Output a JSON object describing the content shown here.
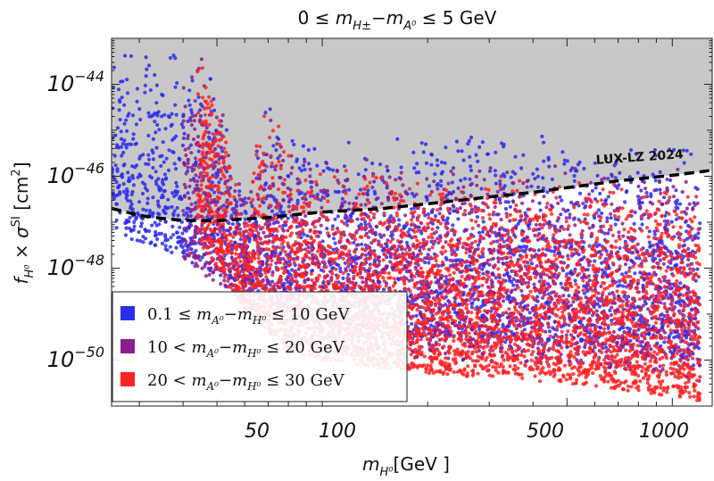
{
  "chart_data": {
    "type": "scatter",
    "title": "0 ≤ m_{H±} − m_{A⁰} ≤ 5 GeV",
    "title_parts": {
      "a": "0 ≤ ",
      "m1": "m",
      "s1": "H±",
      "dash": "−",
      "m2": "m",
      "s2": "A⁰",
      "b": " ≤ 5 GeV"
    },
    "xlabel": "m_{H⁰} [GeV ]",
    "xlabel_parts": {
      "m": "m",
      "s": "H⁰",
      "u": "[GeV ]"
    },
    "ylabel": "f_{H⁰} × σ^{SI} [cm²]",
    "ylabel_parts": {
      "f": "f",
      "s": "H⁰",
      "times": " × ",
      "sig": "σ",
      "sup": "SI",
      "u": " [cm",
      "sq": "2",
      "end": "]"
    },
    "x_scale": "log",
    "y_scale": "log",
    "xlim": [
      25,
      1300
    ],
    "ylim": [
      1e-51,
      1e-43
    ],
    "x_ticks": [
      {
        "value": 50,
        "label": "50"
      },
      {
        "value": 100,
        "label": "100"
      },
      {
        "value": 500,
        "label": "500"
      },
      {
        "value": 1000,
        "label": "1000"
      }
    ],
    "y_ticks": [
      {
        "value": -44,
        "base": "10",
        "exp": "−44"
      },
      {
        "value": -46,
        "base": "10",
        "exp": "−46"
      },
      {
        "value": -48,
        "base": "10",
        "exp": "−48"
      },
      {
        "value": -50,
        "base": "10",
        "exp": "−50"
      }
    ],
    "exclusion": {
      "label": "LUX-LZ 2024",
      "fill": "#c8c8c8",
      "curve": [
        [
          25,
          -46.7
        ],
        [
          30,
          -46.85
        ],
        [
          35,
          -46.92
        ],
        [
          40,
          -46.96
        ],
        [
          50,
          -46.97
        ],
        [
          60,
          -46.93
        ],
        [
          70,
          -46.9
        ],
        [
          80,
          -46.85
        ],
        [
          100,
          -46.78
        ],
        [
          150,
          -46.7
        ],
        [
          200,
          -46.6
        ],
        [
          300,
          -46.45
        ],
        [
          400,
          -46.35
        ],
        [
          500,
          -46.25
        ],
        [
          700,
          -46.1
        ],
        [
          1000,
          -45.98
        ],
        [
          1300,
          -45.87
        ]
      ]
    },
    "series": [
      {
        "name": "0.1 ≤ m_{A⁰} − m_{H⁰} ≤ 10 GeV",
        "lab": {
          "a": "0.1 ≤ ",
          "m1": "m",
          "s1": "A⁰",
          "dash": "−",
          "m2": "m",
          "s2": "H⁰",
          "b": " ≤ 10 GeV"
        },
        "color": "#2a2cf0",
        "upper": [
          [
            25,
            -43.2
          ],
          [
            40,
            -43.25
          ],
          [
            45,
            -43.2
          ],
          [
            48,
            -43.6
          ],
          [
            52,
            -44.3
          ],
          [
            56,
            -45.3
          ],
          [
            60,
            -46.4
          ],
          [
            62,
            -46.6
          ],
          [
            65,
            -44.9
          ],
          [
            68,
            -44.4
          ],
          [
            72,
            -44.25
          ],
          [
            78,
            -44.75
          ],
          [
            85,
            -45.15
          ],
          [
            100,
            -45.1
          ],
          [
            200,
            -45.05
          ],
          [
            500,
            -45.05
          ],
          [
            1000,
            -45.15
          ],
          [
            1200,
            -45.25
          ]
        ],
        "lower": [
          [
            25,
            -47.2
          ],
          [
            40,
            -47.8
          ],
          [
            60,
            -48.4
          ],
          [
            80,
            -49.1
          ],
          [
            100,
            -49.3
          ],
          [
            200,
            -49.5
          ],
          [
            500,
            -49.7
          ],
          [
            1000,
            -49.9
          ],
          [
            1200,
            -50.3
          ]
        ]
      },
      {
        "name": "10 < m_{A⁰} − m_{H⁰} ≤ 20 GeV",
        "lab": {
          "a": "10 < ",
          "m1": "m",
          "s1": "A⁰",
          "dash": "−",
          "m2": "m",
          "s2": "H⁰",
          "b": " ≤ 20 GeV"
        },
        "color": "#8a1f8e",
        "upper": [
          [
            40,
            -43.5
          ],
          [
            45,
            -43.2
          ],
          [
            48,
            -43.6
          ],
          [
            52,
            -44.6
          ],
          [
            56,
            -45.6
          ],
          [
            60,
            -46.5
          ],
          [
            65,
            -45.2
          ],
          [
            70,
            -44.3
          ],
          [
            78,
            -44.9
          ],
          [
            85,
            -45.4
          ],
          [
            100,
            -45.5
          ],
          [
            200,
            -45.6
          ],
          [
            500,
            -45.6
          ],
          [
            1000,
            -45.65
          ],
          [
            1200,
            -45.7
          ]
        ],
        "lower": [
          [
            40,
            -47.8
          ],
          [
            60,
            -48.8
          ],
          [
            80,
            -49.6
          ],
          [
            100,
            -49.8
          ],
          [
            200,
            -50.0
          ],
          [
            500,
            -50.1
          ],
          [
            1000,
            -50.3
          ],
          [
            1200,
            -50.5
          ]
        ]
      },
      {
        "name": "20 < m_{A⁰} − m_{H⁰} ≤ 30 GeV",
        "lab": {
          "a": "20 < ",
          "m1": "m",
          "s1": "A⁰",
          "dash": "−",
          "m2": "m",
          "s2": "H⁰",
          "b": " ≤ 30 GeV"
        },
        "color": "#ff2222",
        "upper": [
          [
            44,
            -43.2
          ],
          [
            47,
            -43.35
          ],
          [
            50,
            -44.1
          ],
          [
            54,
            -45.3
          ],
          [
            58,
            -46.4
          ],
          [
            61,
            -46.7
          ],
          [
            64,
            -45.4
          ],
          [
            68,
            -44.45
          ],
          [
            72,
            -44.4
          ],
          [
            78,
            -45.0
          ],
          [
            85,
            -45.6
          ],
          [
            100,
            -45.85
          ],
          [
            200,
            -45.95
          ],
          [
            500,
            -46.05
          ],
          [
            1000,
            -46.15
          ],
          [
            1200,
            -46.2
          ]
        ],
        "lower": [
          [
            44,
            -47.4
          ],
          [
            60,
            -48.9
          ],
          [
            80,
            -49.8
          ],
          [
            100,
            -50.0
          ],
          [
            200,
            -50.3
          ],
          [
            500,
            -50.5
          ],
          [
            1000,
            -50.8
          ],
          [
            1200,
            -50.9
          ]
        ]
      }
    ],
    "legend": {
      "position": "bottom-left"
    },
    "grid": false
  }
}
